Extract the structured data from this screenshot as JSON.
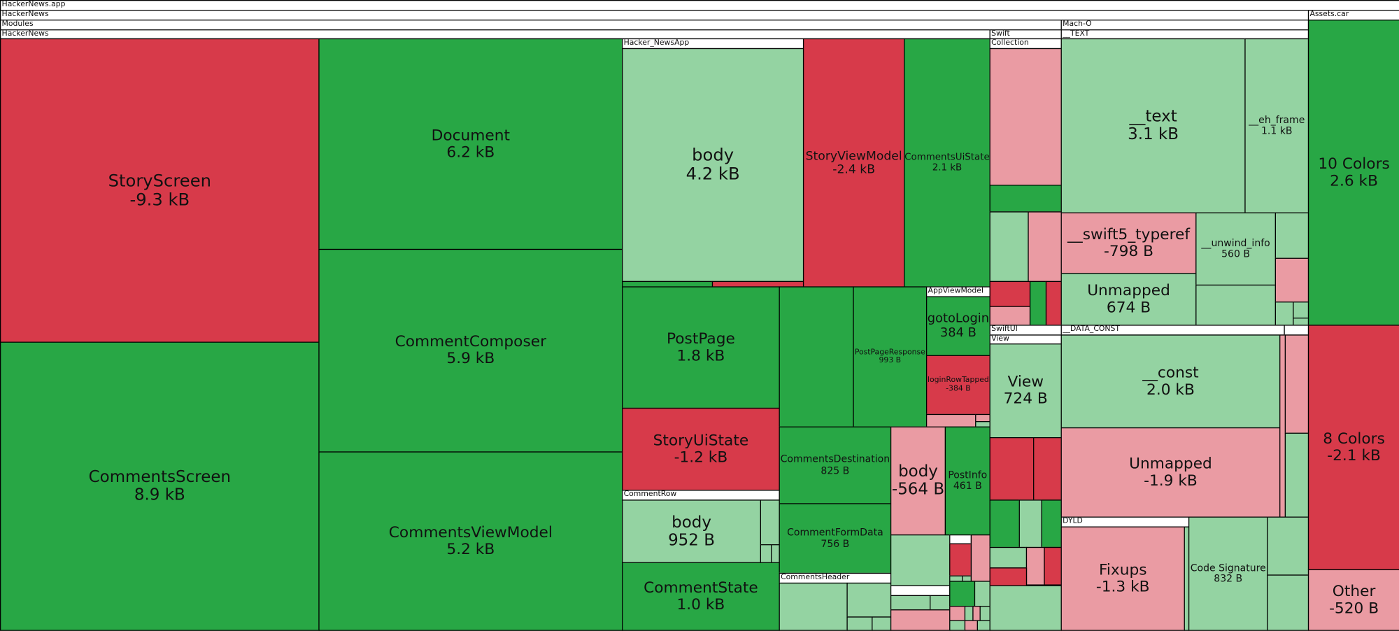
{
  "colors": {
    "red": "#d73a4a",
    "green": "#28a745",
    "light_green": "#94d3a2",
    "pink": "#ea9ba3"
  },
  "headers": {
    "app": "HackerNews.app",
    "hackernews1": "HackerNews",
    "assets": "Assets.car",
    "modules": "Modules",
    "macho": "Mach-O",
    "hackernews2": "HackerNews",
    "swift": "Swift",
    "text_seg": "__TEXT",
    "hn_app": "Hacker_NewsApp",
    "app_vm": "AppViewModel",
    "comment_row": "CommentRow",
    "comments_header": "CommentsHeader",
    "collection": "Collection",
    "swiftui": "SwiftUI",
    "view": "View",
    "data_const": "__DATA_CONST",
    "dyld": "DYLD"
  },
  "nodes": {
    "story_screen": {
      "name": "StoryScreen",
      "size": "-9.3 kB"
    },
    "comments_screen": {
      "name": "CommentsScreen",
      "size": "8.9 kB"
    },
    "document": {
      "name": "Document",
      "size": "6.2 kB"
    },
    "comment_composer": {
      "name": "CommentComposer",
      "size": "5.9 kB"
    },
    "comments_view_model": {
      "name": "CommentsViewModel",
      "size": "5.2 kB"
    },
    "body_app": {
      "name": "body",
      "size": "4.2 kB"
    },
    "story_view_model": {
      "name": "StoryViewModel",
      "size": "-2.4 kB"
    },
    "comments_ui_state": {
      "name": "CommentsUiState",
      "size": "2.1 kB"
    },
    "post_page": {
      "name": "PostPage",
      "size": "1.8 kB"
    },
    "story_ui_state": {
      "name": "StoryUiState",
      "size": "-1.2 kB"
    },
    "body_row": {
      "name": "body",
      "size": "952 B"
    },
    "comment_state": {
      "name": "CommentState",
      "size": "1.0 kB"
    },
    "post_page_response": {
      "name": "PostPageResponse",
      "size": "993 B"
    },
    "goto_login": {
      "name": "gotoLogin",
      "size": "384 B"
    },
    "login_row_tapped": {
      "name": "loginRowTapped",
      "size": "-384 B"
    },
    "comments_destination": {
      "name": "CommentsDestination",
      "size": "825 B"
    },
    "comment_form_data": {
      "name": "CommentFormData",
      "size": "756 B"
    },
    "body_neg": {
      "name": "body",
      "size": "-564 B"
    },
    "post_info": {
      "name": "PostInfo",
      "size": "461 B"
    },
    "view": {
      "name": "View",
      "size": "724 B"
    },
    "text": {
      "name": "__text",
      "size": "3.1 kB"
    },
    "eh_frame": {
      "name": "__eh_frame",
      "size": "1.1 kB"
    },
    "typeref": {
      "name": "__swift5_typeref",
      "size": "-798 B"
    },
    "unmapped_text": {
      "name": "Unmapped",
      "size": "674 B"
    },
    "unwind_info": {
      "name": "__unwind_info",
      "size": "560 B"
    },
    "const": {
      "name": "__const",
      "size": "2.0 kB"
    },
    "unmapped_data": {
      "name": "Unmapped",
      "size": "-1.9 kB"
    },
    "fixups": {
      "name": "Fixups",
      "size": "-1.3 kB"
    },
    "code_signature": {
      "name": "Code Signature",
      "size": "832 B"
    },
    "colors10": {
      "name": "10 Colors",
      "size": "2.6 kB"
    },
    "colors8": {
      "name": "8 Colors",
      "size": "-2.1 kB"
    },
    "other": {
      "name": "Other",
      "size": "-520 B"
    }
  }
}
